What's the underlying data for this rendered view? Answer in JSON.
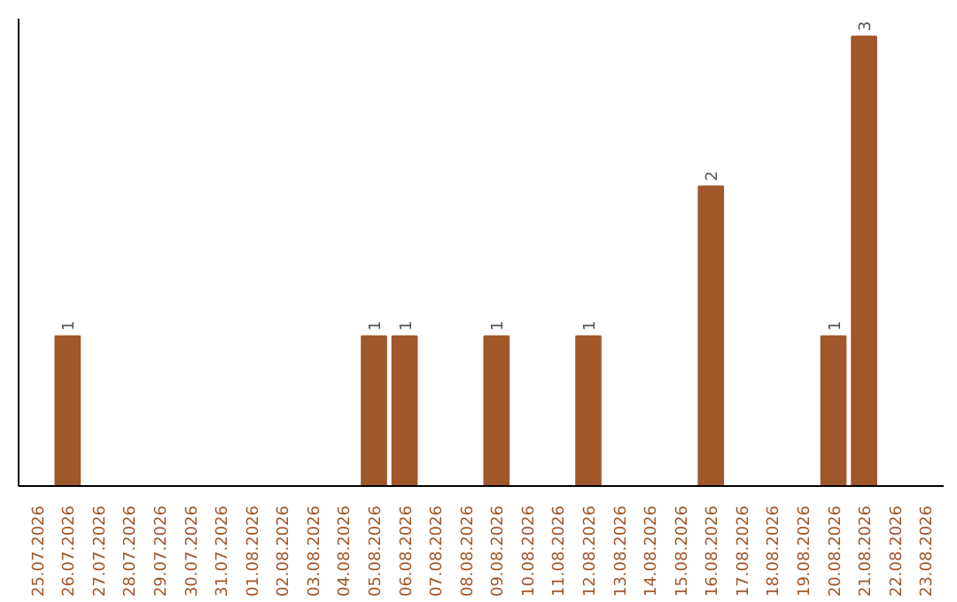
{
  "chart_data": {
    "type": "bar",
    "categories": [
      "25.07.2026",
      "26.07.2026",
      "27.07.2026",
      "28.07.2026",
      "29.07.2026",
      "30.07.2026",
      "31.07.2026",
      "01.08.2026",
      "02.08.2026",
      "03.08.2026",
      "04.08.2026",
      "05.08.2026",
      "06.08.2026",
      "07.08.2026",
      "08.08.2026",
      "09.08.2026",
      "10.08.2026",
      "11.08.2026",
      "12.08.2026",
      "13.08.2026",
      "14.08.2026",
      "15.08.2026",
      "16.08.2026",
      "17.08.2026",
      "18.08.2026",
      "19.08.2026",
      "20.08.2026",
      "21.08.2026",
      "22.08.2026",
      "23.08.2026"
    ],
    "values": [
      0,
      1,
      0,
      0,
      0,
      0,
      0,
      0,
      0,
      0,
      0,
      1,
      1,
      0,
      0,
      1,
      0,
      0,
      1,
      0,
      0,
      0,
      2,
      0,
      0,
      0,
      1,
      3,
      0,
      0
    ],
    "value_labels": [
      null,
      "1",
      null,
      null,
      null,
      null,
      null,
      null,
      null,
      null,
      null,
      "1",
      "1",
      null,
      null,
      "1",
      null,
      null,
      "1",
      null,
      null,
      null,
      "2",
      null,
      null,
      null,
      "1",
      "3",
      null,
      null
    ],
    "color": "#a0572a",
    "grid": false
  }
}
